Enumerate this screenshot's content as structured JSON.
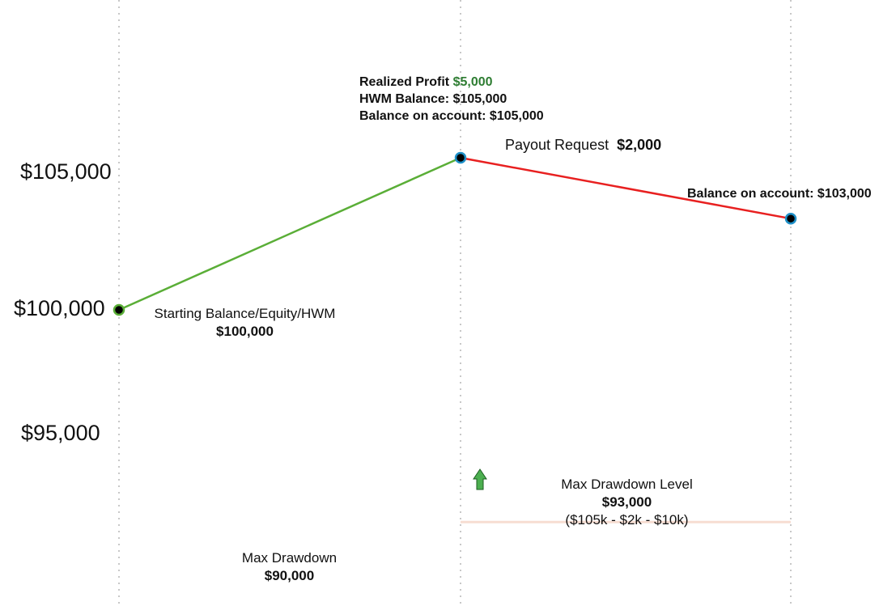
{
  "chart_data": {
    "type": "line",
    "y_tick_labels": [
      "$105,000",
      "$100,000",
      "$95,000"
    ],
    "y_ticks": [
      105000,
      100000,
      95000
    ],
    "grid": "vertical dotted",
    "points": [
      100000,
      105000,
      103000
    ],
    "segment_colors": [
      "#5aae37",
      "#e82020"
    ],
    "point_colors": {
      "fill": "#000000",
      "stroke_start": "#5aae37",
      "stroke_other": "#1e90c8"
    },
    "drawdown_levels": [
      {
        "value": 90000,
        "color": "#f7ddd2"
      },
      {
        "value": 93000,
        "color": "#f7ddd2"
      }
    ],
    "annotations": {
      "start_label": "Starting Balance/Equity/HWM",
      "start_value": "$100,000",
      "realized_label": "Realized Profit ",
      "realized_value": "$5,000",
      "hwm_line": "HWM Balance: $105,000",
      "balance_peak_line": "Balance on account: $105,000",
      "payout_label": "Payout Request",
      "payout_value": "$2,000",
      "balance_end_line": "Balance on account: $103,000",
      "max_drawdown_label": "Max Drawdown",
      "max_drawdown_value": "$90,000",
      "max_drawdown_level_label": "Max Drawdown Level",
      "max_drawdown_level_value": "$93,000",
      "max_drawdown_level_formula": "($105k - $2k - $10k)"
    },
    "arrow_color": "#4caf50"
  }
}
